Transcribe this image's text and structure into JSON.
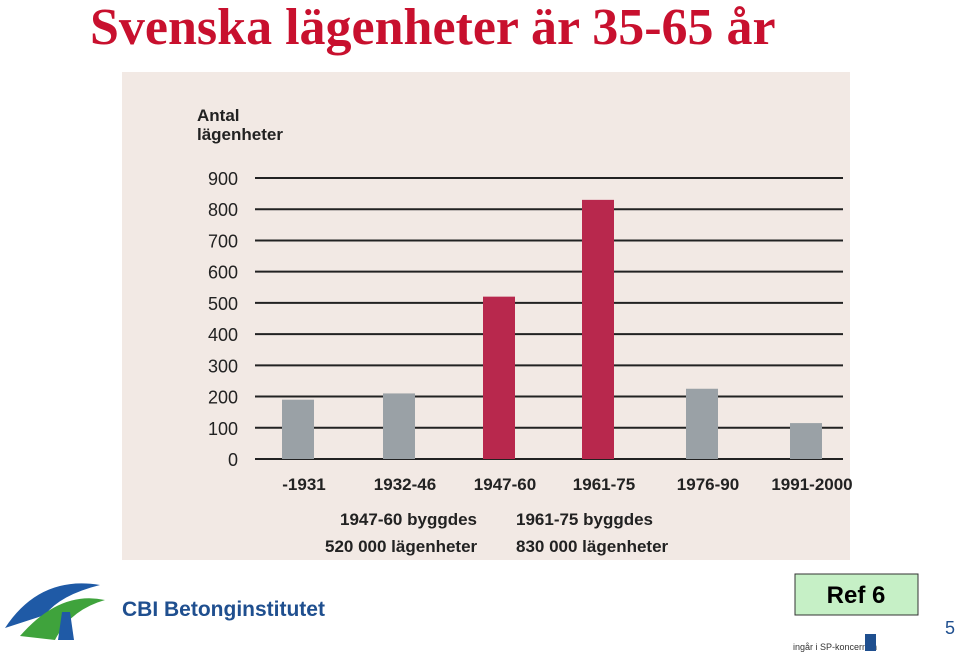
{
  "slide": {
    "title": "Svenska lägenheter är 35-65 år",
    "logo_text": "CBI Betonginstitutet",
    "ref": "Ref 6",
    "footer_text": "ingår i SP-koncernen",
    "page_number": "5"
  },
  "chart_data": {
    "type": "bar",
    "ylabel_lines": [
      "Antal",
      "lägenheter"
    ],
    "categories": [
      "-1931",
      "1932-46",
      "1947-60",
      "1961-75",
      "1976-90",
      "1991-2000"
    ],
    "values": [
      190,
      210,
      520,
      830,
      225,
      115
    ],
    "colors": [
      "#9aa1a6",
      "#9aa1a6",
      "#b8284d",
      "#b8284d",
      "#9aa1a6",
      "#9aa1a6"
    ],
    "ylim": [
      0,
      900
    ],
    "yticks": [
      0,
      100,
      200,
      300,
      400,
      500,
      600,
      700,
      800,
      900
    ],
    "grid": true,
    "annotations": [
      [
        "1947-60 byggdes",
        "520 000 lägenheter"
      ],
      [
        "1961-75 byggdes",
        "830 000 lägenheter"
      ]
    ]
  }
}
